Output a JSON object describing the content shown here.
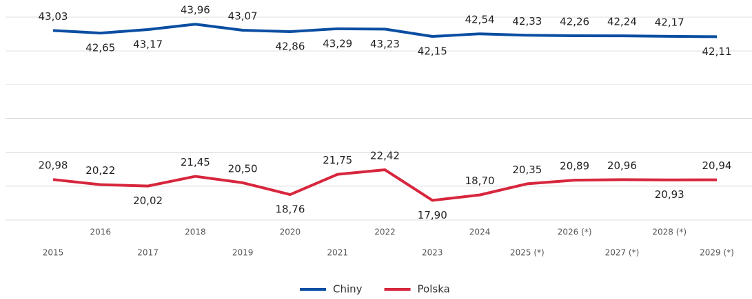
{
  "chart_data": {
    "type": "line",
    "categories": [
      "2015",
      "2016",
      "2017",
      "2018",
      "2019",
      "2020",
      "2021",
      "2022",
      "2023",
      "2024",
      "2025 (*)",
      "2026 (*)",
      "2027 (*)",
      "2028 (*)",
      "2029 (*)"
    ],
    "series": [
      {
        "name": "Chiny",
        "color": "#0b4ea2",
        "values": [
          43.03,
          42.65,
          43.17,
          43.96,
          43.07,
          42.86,
          43.29,
          43.23,
          42.15,
          42.54,
          42.33,
          42.26,
          42.24,
          42.17,
          42.11
        ],
        "value_labels": [
          "43,03",
          "42,65",
          "43,17",
          "43,96",
          "43,07",
          "42,86",
          "43,29",
          "43,23",
          "42,15",
          "42,54",
          "42,33",
          "42,26",
          "42,24",
          "42,17",
          "42,11"
        ]
      },
      {
        "name": "Polska",
        "color": "#d7263d",
        "values": [
          20.98,
          20.22,
          20.02,
          21.45,
          20.5,
          18.76,
          21.75,
          22.42,
          17.9,
          18.7,
          20.35,
          20.89,
          20.96,
          20.93,
          20.94
        ],
        "value_labels": [
          "20,98",
          "20,22",
          "20,02",
          "21,45",
          "20,50",
          "18,76",
          "21,75",
          "22,42",
          "17,90",
          "18,70",
          "20,35",
          "20,89",
          "20,96",
          "20,93",
          "20,94"
        ]
      }
    ],
    "ylim": [
      15,
      45
    ],
    "yticks": [
      15,
      20,
      25,
      30,
      35,
      40,
      45
    ],
    "grid": true,
    "legend": "bottom"
  }
}
